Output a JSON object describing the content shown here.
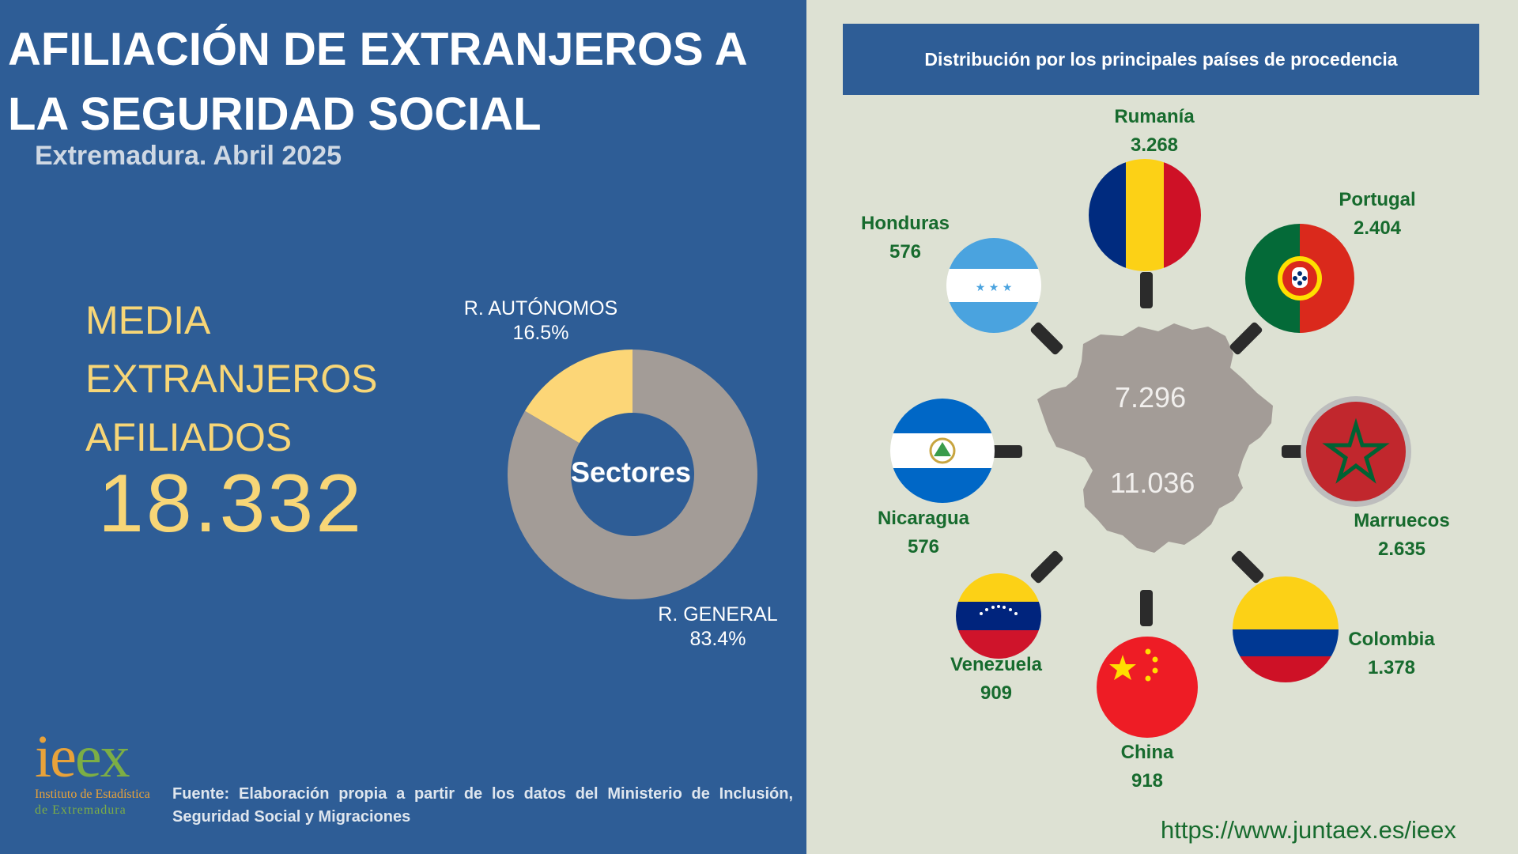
{
  "header": {
    "title": "AFILIACIÓN DE EXTRANJEROS A LA SEGURIDAD SOCIAL",
    "subtitle": "Extremadura. Abril 2025"
  },
  "kpi": {
    "label_lines": [
      "MEDIA",
      "EXTRANJEROS",
      "AFILIADOS"
    ],
    "value": "18.332"
  },
  "chart_data": [
    {
      "type": "pie",
      "donut": true,
      "title": "Sectores",
      "categories": [
        "R. AUTÓNOMOS",
        "R. GENERAL"
      ],
      "values": [
        16.5,
        83.4
      ],
      "value_labels": [
        "16.5%",
        "83.4%"
      ],
      "colors": [
        "#fcd677",
        "#a39c97"
      ]
    },
    {
      "type": "bar",
      "title": "Distribución por los principales países de procedencia",
      "categories": [
        "Rumanía",
        "Portugal",
        "Marruecos",
        "Colombia",
        "China",
        "Venezuela",
        "Nicaragua",
        "Honduras"
      ],
      "values": [
        3268,
        2404,
        2635,
        1378,
        918,
        909,
        576,
        576
      ],
      "value_labels": [
        "3.268",
        "2.404",
        "2.635",
        "1.378",
        "918",
        "909",
        "576",
        "576"
      ]
    }
  ],
  "map": {
    "upper_value": "7.296",
    "lower_value": "11.036",
    "fill_color": "#a39c97"
  },
  "footer": {
    "logo_word": "ieex",
    "logo_line1": "Instituto de Estadística",
    "logo_line2": "de Extremadura",
    "source": "Fuente: Elaboración propia a partir de los datos del Ministerio de Inclusión, Seguridad Social y Migraciones",
    "url": "https://www.juntaex.es/ieex"
  },
  "colors": {
    "left_bg": "#2e5d96",
    "right_bg": "#dde1d3",
    "accent_yellow": "#f7d677",
    "country_green": "#176b2e"
  }
}
